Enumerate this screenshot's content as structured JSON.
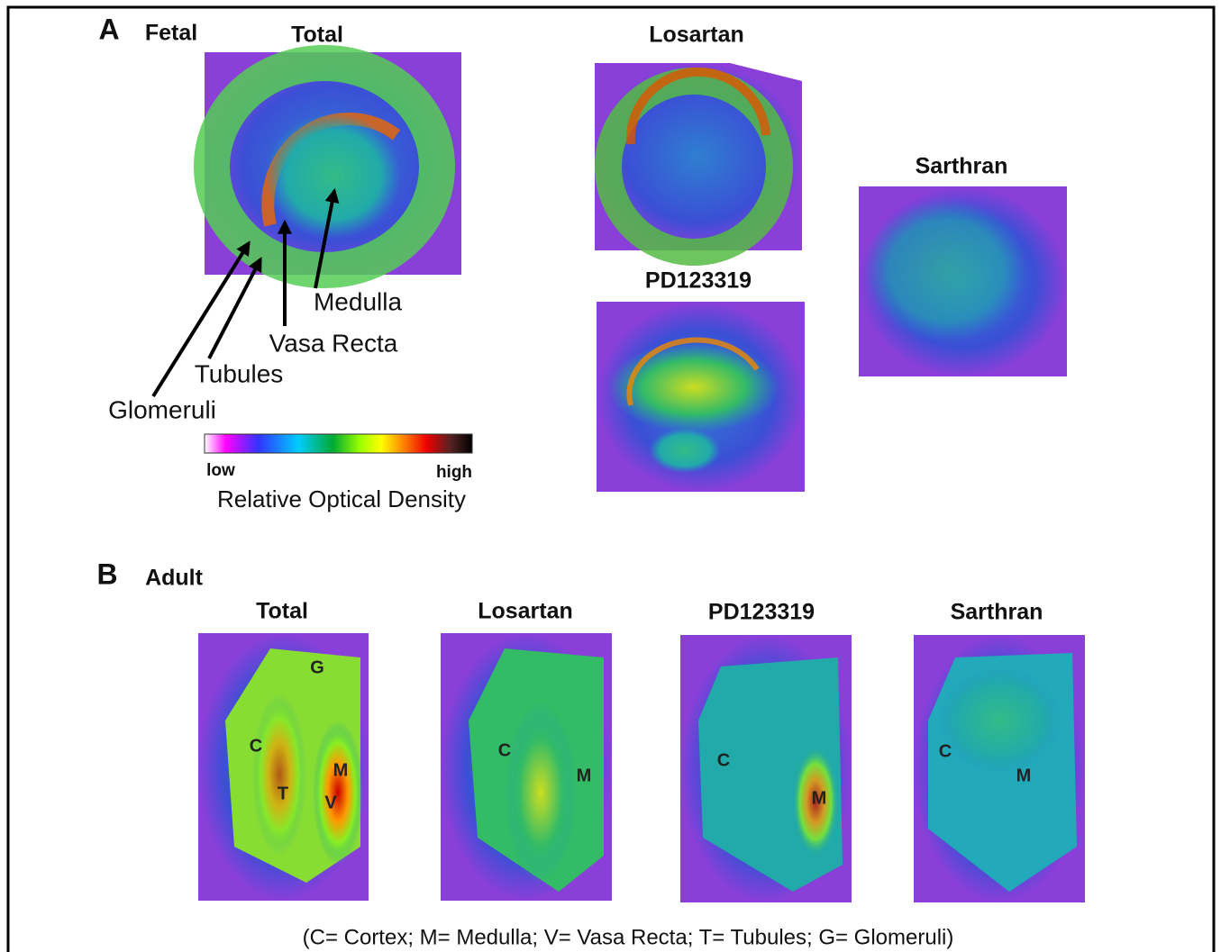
{
  "panel_a": {
    "label": "A",
    "title": "Fetal",
    "images": [
      {
        "title": "Total"
      },
      {
        "title": "Losartan"
      },
      {
        "title": "PD123319"
      },
      {
        "title": "Sarthran"
      }
    ],
    "annotations": [
      "Medulla",
      "Vasa Recta",
      "Tubules",
      "Glomeruli"
    ],
    "colorbar": {
      "low": "low",
      "high": "high",
      "label": "Relative Optical Density"
    }
  },
  "panel_b": {
    "label": "B",
    "title": "Adult",
    "images": [
      {
        "title": "Total",
        "labels": [
          "G",
          "C",
          "T",
          "M",
          "V"
        ]
      },
      {
        "title": "Losartan",
        "labels": [
          "C",
          "M"
        ]
      },
      {
        "title": "PD123319",
        "labels": [
          "C",
          "M"
        ]
      },
      {
        "title": "Sarthran",
        "labels": [
          "C",
          "M"
        ]
      }
    ]
  },
  "caption": "(C= Cortex; M= Medulla; V= Vasa Recta; T= Tubules; G= Glomeruli)"
}
